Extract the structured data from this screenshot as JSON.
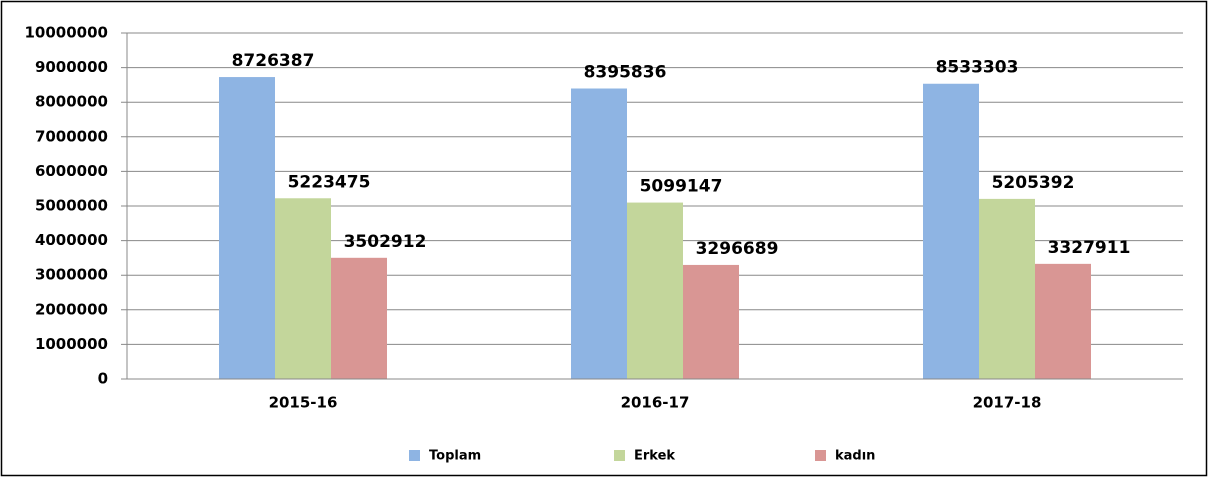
{
  "chart_data": {
    "type": "bar",
    "categories": [
      "2015-16",
      "2016-17",
      "2017-18"
    ],
    "series": [
      {
        "name": "Toplam",
        "color": "#8eb4e3",
        "values": [
          8726387,
          8395836,
          8533303
        ]
      },
      {
        "name": "Erkek",
        "color": "#c3d69b",
        "values": [
          5223475,
          5099147,
          5205392
        ]
      },
      {
        "name": "kadın",
        "color": "#d99694",
        "values": [
          3502912,
          3296689,
          3327911
        ]
      }
    ],
    "ylim": [
      0,
      10000000
    ],
    "yticks": [
      0,
      1000000,
      2000000,
      3000000,
      4000000,
      5000000,
      6000000,
      7000000,
      8000000,
      9000000,
      10000000
    ],
    "grid": true,
    "legend": "bottom",
    "data_labels": true
  }
}
